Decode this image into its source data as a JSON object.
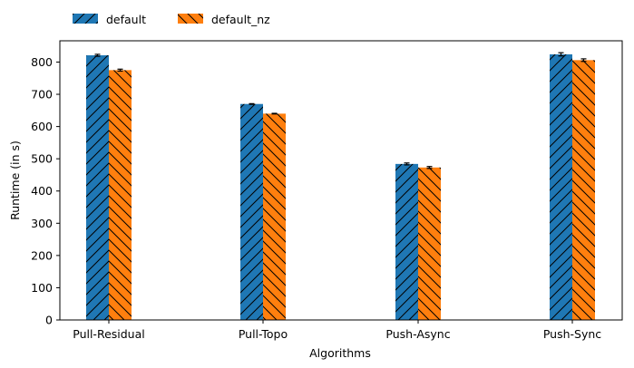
{
  "chart_data": {
    "type": "bar",
    "title": "",
    "xlabel": "Algorithms",
    "ylabel": "Runtime (in s)",
    "categories": [
      "Pull-Residual",
      "Pull-Topo",
      "Push-Async",
      "Push-Sync"
    ],
    "ylim": [
      0,
      866
    ],
    "yticks": [
      0,
      100,
      200,
      300,
      400,
      500,
      600,
      700,
      800
    ],
    "grid": false,
    "legend_position": "top-left",
    "series": [
      {
        "name": "default",
        "color": "#1f77b4",
        "hatch": "forward-diagonal",
        "values": [
          821,
          670,
          484,
          824
        ],
        "errors": [
          3,
          1,
          3,
          5
        ]
      },
      {
        "name": "default_nz",
        "color": "#ff7f0e",
        "hatch": "back-diagonal",
        "values": [
          775,
          640,
          473,
          806
        ],
        "errors": [
          3,
          1,
          3,
          4
        ]
      }
    ]
  }
}
